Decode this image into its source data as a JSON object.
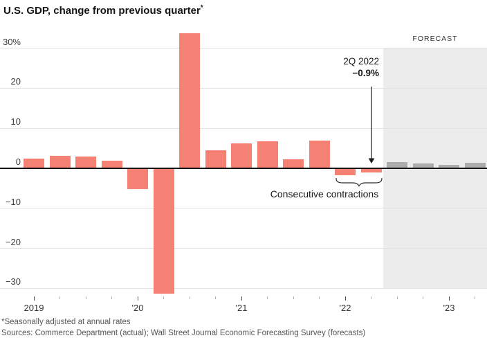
{
  "title": {
    "text": "U.S. GDP, change from previous quarter",
    "asterisk": "*"
  },
  "forecast_label": "FORECAST",
  "annotation": {
    "quarter": "2Q 2022",
    "value": "−0.9%"
  },
  "brace_label": "Consecutive contractions",
  "footnote": "*Seasonally adjusted at annual rates",
  "sources": "Sources: Commerce Department (actual); Wall Street Journal Economic Forecasting Survey (forecasts)",
  "chart_data": {
    "type": "bar",
    "title": "U.S. GDP, change from previous quarter*",
    "ylim": [
      -32,
      35
    ],
    "grid": true,
    "y_axis": {
      "ticks": [
        {
          "value": 30,
          "label": "30%"
        },
        {
          "value": 20,
          "label": "20"
        },
        {
          "value": 10,
          "label": "10"
        },
        {
          "value": 0,
          "label": "0"
        },
        {
          "value": -10,
          "label": "−10"
        },
        {
          "value": -20,
          "label": "−20"
        },
        {
          "value": -30,
          "label": "−30"
        }
      ]
    },
    "x_axis": {
      "year_labels": [
        {
          "index": 0,
          "label": "2019"
        },
        {
          "index": 4,
          "label": "'20"
        },
        {
          "index": 8,
          "label": "'21"
        },
        {
          "index": 12,
          "label": "'22"
        },
        {
          "index": 16,
          "label": "'23"
        }
      ]
    },
    "bars": [
      {
        "period": "1Q 2019",
        "value": 2.4,
        "kind": "actual"
      },
      {
        "period": "2Q 2019",
        "value": 3.2,
        "kind": "actual"
      },
      {
        "period": "3Q 2019",
        "value": 2.9,
        "kind": "actual"
      },
      {
        "period": "4Q 2019",
        "value": 1.9,
        "kind": "actual"
      },
      {
        "period": "1Q 2020",
        "value": -5.1,
        "kind": "actual"
      },
      {
        "period": "2Q 2020",
        "value": -31.2,
        "kind": "actual"
      },
      {
        "period": "3Q 2020",
        "value": 33.8,
        "kind": "actual"
      },
      {
        "period": "4Q 2020",
        "value": 4.5,
        "kind": "actual"
      },
      {
        "period": "1Q 2021",
        "value": 6.3,
        "kind": "actual"
      },
      {
        "period": "2Q 2021",
        "value": 6.7,
        "kind": "actual"
      },
      {
        "period": "3Q 2021",
        "value": 2.3,
        "kind": "actual"
      },
      {
        "period": "4Q 2021",
        "value": 6.9,
        "kind": "actual"
      },
      {
        "period": "1Q 2022",
        "value": -1.6,
        "kind": "actual"
      },
      {
        "period": "2Q 2022",
        "value": -0.9,
        "kind": "actual"
      },
      {
        "period": "3Q 2022",
        "value": 1.6,
        "kind": "forecast"
      },
      {
        "period": "4Q 2022",
        "value": 1.2,
        "kind": "forecast"
      },
      {
        "period": "1Q 2023",
        "value": 0.9,
        "kind": "forecast"
      },
      {
        "period": "2Q 2023",
        "value": 1.3,
        "kind": "forecast"
      }
    ],
    "colors": {
      "actual": "#f4796b",
      "forecast": "#a9a9a9",
      "forecast_band": "#ececec",
      "gridline": "#e2e2e2",
      "zero_axis": "#151515"
    },
    "legend_position": "none"
  }
}
